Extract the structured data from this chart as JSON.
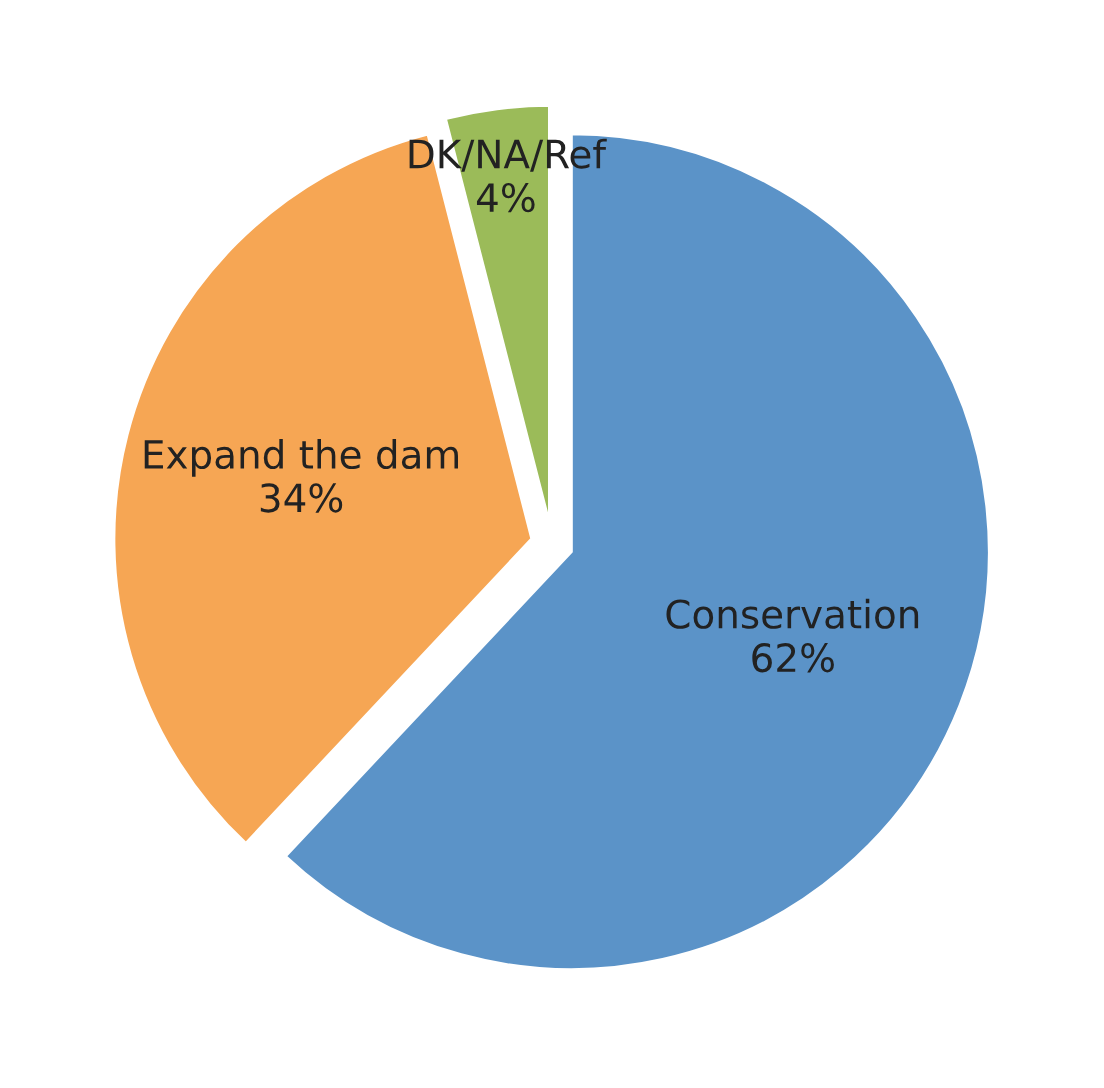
{
  "chart_data": {
    "type": "pie",
    "categories": [
      "Conservation",
      "Expand the dam",
      "DK/NA/Ref"
    ],
    "values": [
      62,
      34,
      4
    ],
    "value_labels": [
      "62%",
      "34%",
      "4%"
    ],
    "colors": [
      "#5b93c8",
      "#f6a654",
      "#9bbb59"
    ]
  }
}
